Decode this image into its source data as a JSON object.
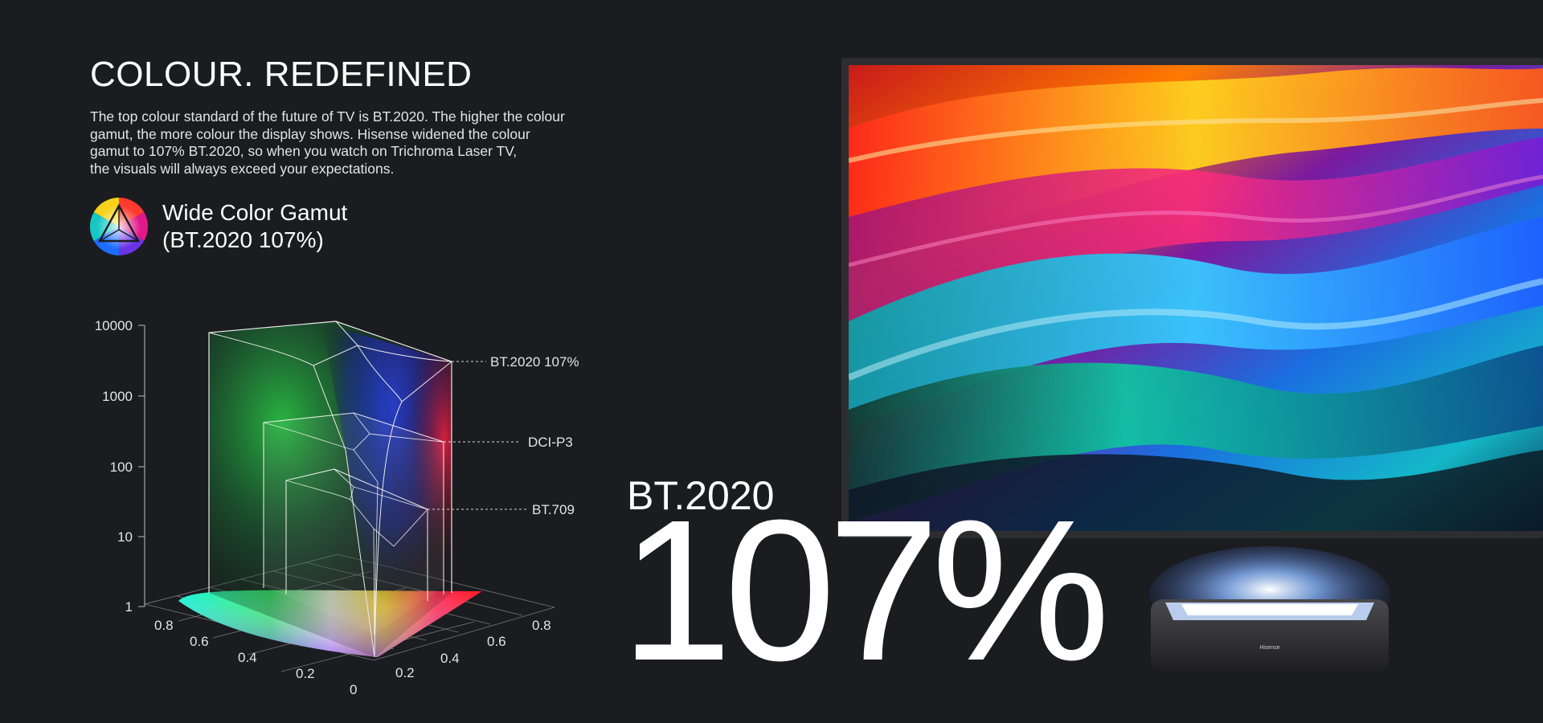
{
  "hero": {
    "headline": "COLOUR. REDEFINED",
    "description_lines": [
      "The top colour standard of the future of TV is BT.2020. The higher the colour",
      "gamut, the more colour the display shows. Hisense widened the colour",
      "gamut to 107% BT.2020, so when you watch on Trichroma Laser TV,",
      "the visuals will always exceed your expectations."
    ]
  },
  "feature": {
    "icon": "color-gamut-triangle-icon",
    "title_line1": "Wide Color Gamut",
    "title_line2": "(BT.2020 107%)"
  },
  "diagram": {
    "vertical_axis": {
      "scale": "log",
      "ticks": [
        "10000",
        "1000",
        "100",
        "10",
        "1"
      ]
    },
    "left_floor_axis_ticks": [
      "0.8",
      "0.6",
      "0.4",
      "0.2",
      "0"
    ],
    "right_floor_axis_ticks": [
      "0.2",
      "0.4",
      "0.6",
      "0.8"
    ],
    "volumes": [
      {
        "label": "BT.2020 107%"
      },
      {
        "label": "DCI-P3"
      },
      {
        "label": "BT.709"
      }
    ]
  },
  "stat": {
    "label": "BT.2020",
    "value": "107%"
  },
  "tv_brand": "Hisense",
  "colors": {
    "background": "#1b1c1f",
    "text": "#ffffff"
  }
}
